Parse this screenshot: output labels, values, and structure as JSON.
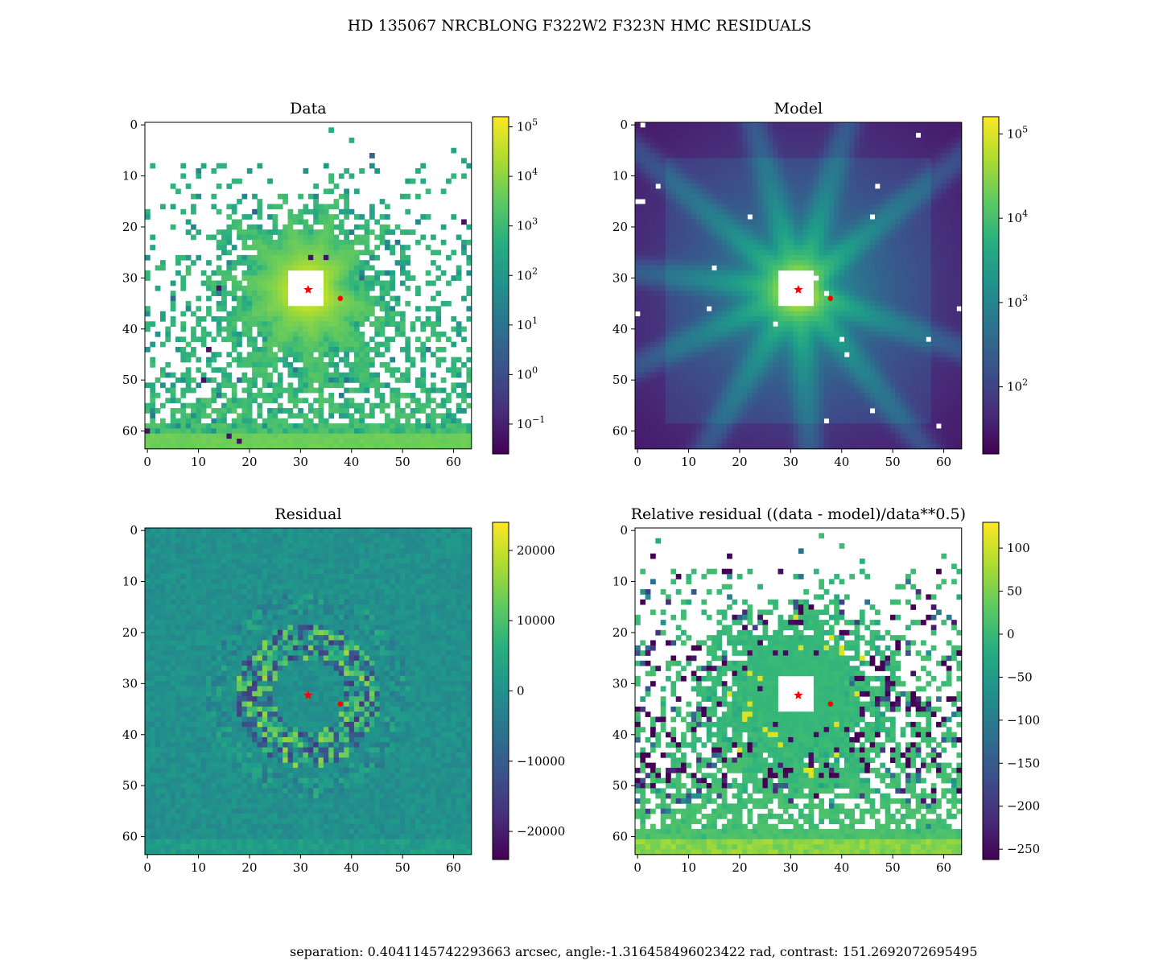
{
  "figure": {
    "title": "HD 135067 NRCBLONG F322W2 F323N HMC RESIDUALS",
    "footer": "separation: 0.4041145742293663 arcsec, angle:-1.316458496023422 rad, contrast: 151.2692072695495"
  },
  "chart_data": [
    {
      "type": "heatmap",
      "title": "Data",
      "grid_size": [
        64,
        64
      ],
      "xlim": [
        -0.5,
        63.5
      ],
      "ylim": [
        63.5,
        -0.5
      ],
      "xticks": [
        0,
        10,
        20,
        30,
        40,
        50,
        60
      ],
      "yticks": [
        0,
        10,
        20,
        30,
        40,
        50,
        60
      ],
      "color_scale": "log",
      "colormap": "viridis",
      "colorbar_range": [
        0.025,
        160000
      ],
      "colorbar_ticks": [
        {
          "value": 100000,
          "base": "10",
          "exp": "5"
        },
        {
          "value": 10000,
          "base": "10",
          "exp": "4"
        },
        {
          "value": 1000,
          "base": "10",
          "exp": "3"
        },
        {
          "value": 100,
          "base": "10",
          "exp": "2"
        },
        {
          "value": 10,
          "base": "10",
          "exp": "1"
        },
        {
          "value": 1,
          "base": "10",
          "exp": "0"
        },
        {
          "value": 0.1,
          "base": "10",
          "exp": "−1"
        }
      ],
      "masked_center": {
        "x": [
          28,
          34
        ],
        "y": [
          29,
          35
        ]
      },
      "star_marker": {
        "x": 31.5,
        "y": 32.3,
        "color": "#ff0000"
      },
      "companion_marker": {
        "x": 37.8,
        "y": 34.0,
        "color": "#ff0000"
      }
    },
    {
      "type": "heatmap",
      "title": "Model",
      "grid_size": [
        64,
        64
      ],
      "xlim": [
        -0.5,
        63.5
      ],
      "ylim": [
        63.5,
        -0.5
      ],
      "xticks": [
        0,
        10,
        20,
        30,
        40,
        50,
        60
      ],
      "yticks": [
        0,
        10,
        20,
        30,
        40,
        50,
        60
      ],
      "color_scale": "log",
      "colormap": "viridis",
      "colorbar_range": [
        16,
        160000
      ],
      "colorbar_ticks": [
        {
          "value": 100000,
          "base": "10",
          "exp": "5"
        },
        {
          "value": 10000,
          "base": "10",
          "exp": "4"
        },
        {
          "value": 1000,
          "base": "10",
          "exp": "3"
        },
        {
          "value": 100,
          "base": "10",
          "exp": "2"
        }
      ],
      "masked_center": {
        "x": [
          28,
          34
        ],
        "y": [
          29,
          35
        ]
      },
      "star_marker": {
        "x": 31.5,
        "y": 32.3,
        "color": "#ff0000"
      },
      "companion_marker": {
        "x": 37.8,
        "y": 34.0,
        "color": "#ff0000"
      }
    },
    {
      "type": "heatmap",
      "title": "Residual",
      "grid_size": [
        64,
        64
      ],
      "xlim": [
        -0.5,
        63.5
      ],
      "ylim": [
        63.5,
        -0.5
      ],
      "xticks": [
        0,
        10,
        20,
        30,
        40,
        50,
        60
      ],
      "yticks": [
        0,
        10,
        20,
        30,
        40,
        50,
        60
      ],
      "color_scale": "linear",
      "colormap": "viridis",
      "colorbar_range": [
        -24000,
        24000
      ],
      "colorbar_ticks": [
        {
          "value": 20000,
          "label": "20000"
        },
        {
          "value": 10000,
          "label": "10000"
        },
        {
          "value": 0,
          "label": "0"
        },
        {
          "value": -10000,
          "label": "−10000"
        },
        {
          "value": -20000,
          "label": "−20000"
        }
      ],
      "star_marker": {
        "x": 31.5,
        "y": 32.3,
        "color": "#ff0000"
      },
      "companion_marker": {
        "x": 37.8,
        "y": 34.0,
        "color": "#ff0000"
      }
    },
    {
      "type": "heatmap",
      "title": "Relative residual ((data - model)/data**0.5)",
      "grid_size": [
        64,
        64
      ],
      "xlim": [
        -0.5,
        63.5
      ],
      "ylim": [
        63.5,
        -0.5
      ],
      "xticks": [
        0,
        10,
        20,
        30,
        40,
        50,
        60
      ],
      "yticks": [
        0,
        10,
        20,
        30,
        40,
        50,
        60
      ],
      "color_scale": "linear",
      "colormap": "viridis",
      "colorbar_range": [
        -262,
        130
      ],
      "colorbar_ticks": [
        {
          "value": 100,
          "label": "100"
        },
        {
          "value": 50,
          "label": "50"
        },
        {
          "value": 0,
          "label": "0"
        },
        {
          "value": -50,
          "label": "−50"
        },
        {
          "value": -100,
          "label": "−100"
        },
        {
          "value": -150,
          "label": "−150"
        },
        {
          "value": -200,
          "label": "−200"
        },
        {
          "value": -250,
          "label": "−250"
        }
      ],
      "masked_center": {
        "x": [
          28,
          34
        ],
        "y": [
          29,
          35
        ]
      },
      "star_marker": {
        "x": 31.5,
        "y": 32.3,
        "color": "#ff0000"
      },
      "companion_marker": {
        "x": 37.8,
        "y": 34.0,
        "color": "#ff0000"
      }
    }
  ]
}
